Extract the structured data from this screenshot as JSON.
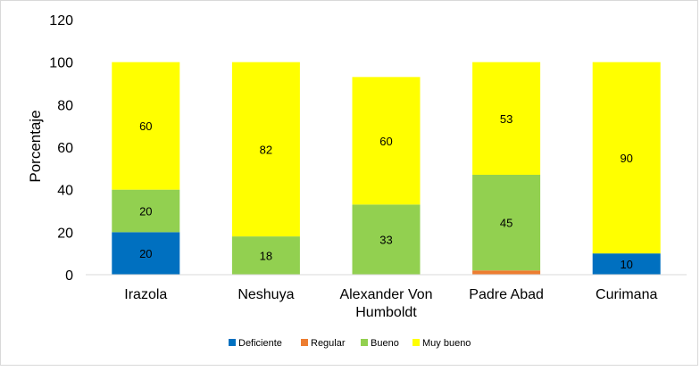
{
  "chart_data": {
    "type": "bar",
    "stacked": true,
    "categories": [
      "Irazola",
      "Neshuya",
      "Alexander Von Humboldt",
      "Padre Abad",
      "Curimana"
    ],
    "category_lines": [
      [
        "Irazola"
      ],
      [
        "Neshuya"
      ],
      [
        "Alexander Von",
        "Humboldt"
      ],
      [
        "Padre Abad"
      ],
      [
        "Curimana"
      ]
    ],
    "series": [
      {
        "name": "Deficiente",
        "color": "#0070C0",
        "values": [
          20,
          0,
          0,
          0,
          10
        ],
        "labels": [
          "20",
          "",
          "",
          "",
          "10"
        ]
      },
      {
        "name": "Regular",
        "color": "#ED7D31",
        "values": [
          0,
          0,
          0,
          2,
          0
        ],
        "labels": [
          "",
          "",
          "",
          "",
          ""
        ]
      },
      {
        "name": "Bueno",
        "color": "#92D050",
        "values": [
          20,
          18,
          33,
          45,
          0
        ],
        "labels": [
          "20",
          "18",
          "33",
          "45",
          ""
        ]
      },
      {
        "name": "Muy bueno",
        "color": "#FFFF00",
        "values": [
          60,
          82,
          60,
          53,
          90
        ],
        "labels": [
          "60",
          "82",
          "60",
          "53",
          "90"
        ]
      }
    ],
    "ylabel": "Porcentaje",
    "xlabel": "",
    "title": "",
    "ylim": [
      0,
      120
    ],
    "yticks": [
      0,
      20,
      40,
      60,
      80,
      100,
      120
    ],
    "grid": false,
    "legend": "bottom"
  }
}
